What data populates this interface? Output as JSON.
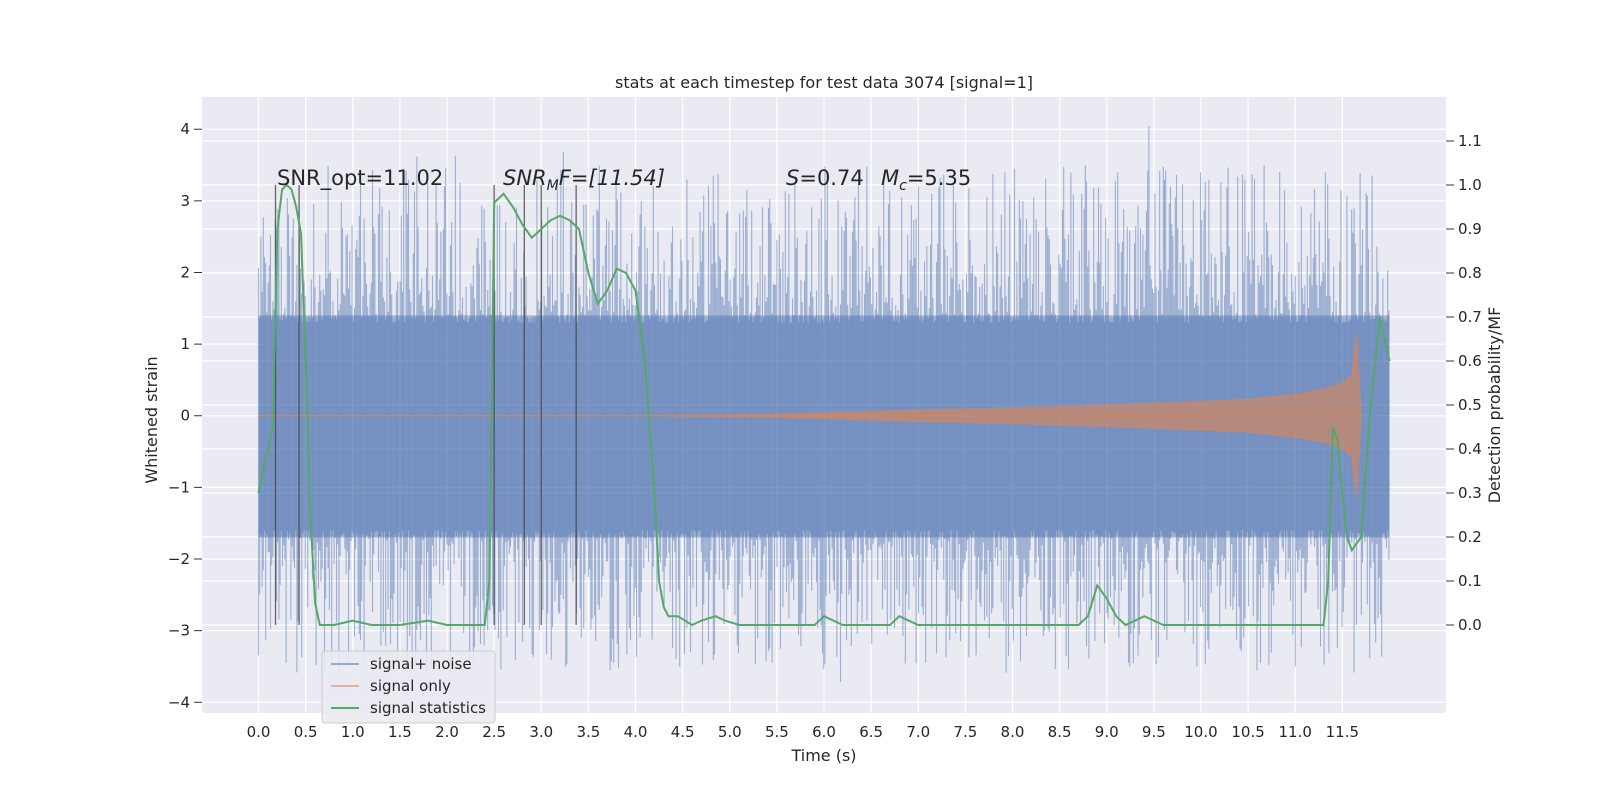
{
  "chart_data": {
    "type": "line",
    "title": "stats at each timestep for test data 3074 [signal=1]",
    "xlabel": "Time (s)",
    "ylabel": "Whitened strain",
    "ylabel_right": "Detection probability/MF",
    "xlim": [
      -0.6,
      12.6
    ],
    "ylim": [
      -4.15,
      4.45
    ],
    "ylim_right": [
      -0.2,
      1.2
    ],
    "xticks": [
      "0.0",
      "0.5",
      "1.0",
      "1.5",
      "2.0",
      "2.5",
      "3.0",
      "3.5",
      "4.0",
      "4.5",
      "5.0",
      "5.5",
      "6.0",
      "6.5",
      "7.0",
      "7.5",
      "8.0",
      "8.5",
      "9.0",
      "9.5",
      "10.0",
      "10.5",
      "11.0",
      "11.5"
    ],
    "yticks": [
      "4",
      "3",
      "2",
      "1",
      "0",
      "−1",
      "−2",
      "−3",
      "−4"
    ],
    "yticks_right": [
      "1.1",
      "1.0",
      "0.9",
      "0.8",
      "0.7",
      "0.6",
      "0.5",
      "0.4",
      "0.3",
      "0.2",
      "0.1",
      "0.0"
    ],
    "grid": true,
    "legend_position": "lower-left",
    "annotations": {
      "snr_opt": "SNR_opt=11.02",
      "snr_mf_sym": "SNR",
      "snr_mf_sub": "M",
      "snr_mf_rest": "F=[11.54]",
      "s_sym": "S",
      "s_rest": "=0.74",
      "mc_sym": "M",
      "mc_sub": "c",
      "mc_rest": "=5.35"
    },
    "series": [
      {
        "name": "signal+ noise",
        "color": "#4c72b0",
        "style": "dense noise band",
        "x_range": [
          0.0,
          12.0
        ],
        "core_band": [
          -1.7,
          1.4
        ],
        "min": -3.8,
        "max": 4.1
      },
      {
        "name": "signal only",
        "color": "#dd8452",
        "style": "chirp envelope",
        "envelope_x": [
          0.0,
          4.0,
          5.5,
          7.0,
          8.0,
          9.0,
          10.0,
          10.5,
          11.0,
          11.3,
          11.5,
          11.6,
          11.65,
          11.7
        ],
        "envelope_y": [
          0.0,
          0.0,
          0.02,
          0.08,
          0.11,
          0.15,
          0.2,
          0.23,
          0.3,
          0.37,
          0.46,
          0.57,
          1.15,
          0.0
        ]
      },
      {
        "name": "signal statistics",
        "color": "#55a868",
        "axis": "right",
        "x": [
          0.0,
          0.08,
          0.15,
          0.2,
          0.25,
          0.3,
          0.35,
          0.4,
          0.45,
          0.5,
          0.55,
          0.6,
          0.65,
          0.7,
          0.8,
          1.0,
          1.2,
          1.5,
          1.8,
          2.0,
          2.2,
          2.4,
          2.45,
          2.5,
          2.55,
          2.6,
          2.7,
          2.8,
          2.9,
          3.0,
          3.1,
          3.2,
          3.3,
          3.4,
          3.5,
          3.6,
          3.7,
          3.8,
          3.9,
          4.0,
          4.1,
          4.2,
          4.25,
          4.3,
          4.35,
          4.45,
          4.6,
          4.7,
          4.85,
          4.95,
          5.1,
          5.4,
          5.6,
          5.9,
          6.0,
          6.1,
          6.2,
          6.5,
          6.7,
          6.8,
          7.0,
          7.4,
          7.8,
          8.2,
          8.7,
          8.8,
          8.9,
          9.0,
          9.1,
          9.2,
          9.4,
          9.5,
          9.6,
          10.0,
          11.0,
          11.3,
          11.35,
          11.4,
          11.45,
          11.5,
          11.55,
          11.6,
          11.7,
          11.8,
          11.9,
          12.0
        ],
        "y": [
          0.3,
          0.38,
          0.45,
          0.9,
          0.99,
          1.0,
          0.99,
          0.95,
          0.89,
          0.6,
          0.25,
          0.05,
          0.0,
          0.0,
          0.0,
          0.01,
          0.0,
          0.0,
          0.01,
          0.0,
          0.0,
          0.0,
          0.1,
          0.96,
          0.97,
          0.98,
          0.95,
          0.91,
          0.88,
          0.9,
          0.92,
          0.93,
          0.92,
          0.9,
          0.8,
          0.73,
          0.76,
          0.81,
          0.8,
          0.76,
          0.6,
          0.3,
          0.1,
          0.04,
          0.02,
          0.02,
          0.0,
          0.01,
          0.02,
          0.01,
          0.0,
          0.0,
          0.0,
          0.0,
          0.02,
          0.01,
          0.0,
          0.0,
          0.0,
          0.02,
          0.0,
          0.0,
          0.0,
          0.0,
          0.0,
          0.02,
          0.09,
          0.06,
          0.02,
          0.0,
          0.02,
          0.01,
          0.0,
          0.0,
          0.0,
          0.0,
          0.1,
          0.45,
          0.42,
          0.3,
          0.2,
          0.17,
          0.2,
          0.5,
          0.7,
          0.6
        ]
      }
    ],
    "vlines": [
      0.18,
      0.43,
      2.5,
      2.82,
      3.0,
      3.37
    ]
  }
}
